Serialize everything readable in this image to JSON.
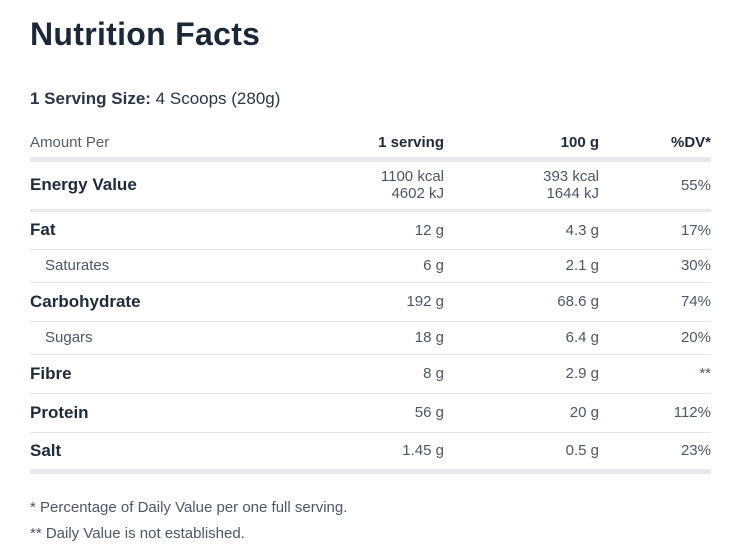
{
  "title": "Nutrition Facts",
  "serving": {
    "label": "1 Serving Size:",
    "value": "4 Scoops (280g)"
  },
  "columns": {
    "amount_per": "Amount Per",
    "serving": "1 serving",
    "per100": "100 g",
    "dv": "%DV*"
  },
  "rows": [
    {
      "name": "Energy Value",
      "serving_kcal": "1100 kcal",
      "serving_kj": "4602 kJ",
      "per100_kcal": "393 kcal",
      "per100_kj": "1644 kJ",
      "dv": "55%"
    },
    {
      "name": "Fat",
      "serving": "12 g",
      "per100": "4.3 g",
      "dv": "17%"
    },
    {
      "name": "Saturates",
      "serving": "6 g",
      "per100": "2.1 g",
      "dv": "30%"
    },
    {
      "name": "Carbohydrate",
      "serving": "192 g",
      "per100": "68.6 g",
      "dv": "74%"
    },
    {
      "name": "Sugars",
      "serving": "18 g",
      "per100": "6.4 g",
      "dv": "20%"
    },
    {
      "name": "Fibre",
      "serving": "8 g",
      "per100": "2.9 g",
      "dv": "**"
    },
    {
      "name": "Protein",
      "serving": "56 g",
      "per100": "20 g",
      "dv": "112%"
    },
    {
      "name": "Salt",
      "serving": "1.45 g",
      "per100": "0.5 g",
      "dv": "23%"
    }
  ],
  "footnotes": [
    "* Percentage of Daily Value per one full serving.",
    "** Daily Value is not established."
  ]
}
